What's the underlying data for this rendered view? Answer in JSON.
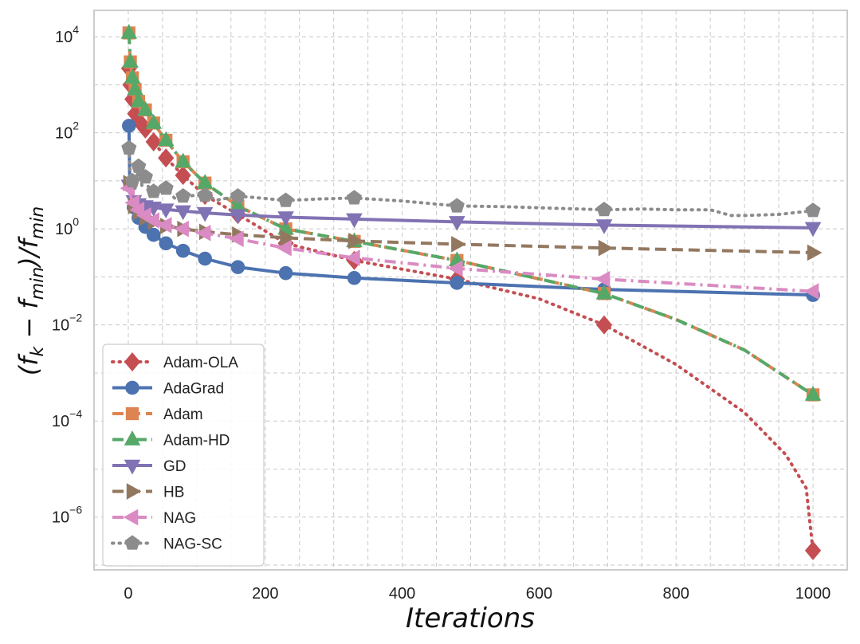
{
  "chart_data": {
    "type": "line",
    "title": "",
    "xlabel": "Iterations",
    "ylabel": {
      "open": "(",
      "fk": "f",
      "k": "k",
      "minus": " − ",
      "fmin1": "f",
      "min1": "min",
      "close": ")/",
      "fmin2": "f",
      "min2": "min"
    },
    "xlim": [
      -50,
      1050
    ],
    "ylim_log10": [
      -7.1,
      4.55
    ],
    "yscale": "log",
    "grid": true,
    "legend_position": "lower-left",
    "x_ticks": [
      0,
      200,
      400,
      600,
      800,
      1000
    ],
    "x_tick_labels": [
      "0",
      "200",
      "400",
      "600",
      "800",
      "1000"
    ],
    "y_ticks_log10": [
      4,
      2,
      0,
      -2,
      -4,
      -6
    ],
    "y_tick_labels": [
      {
        "base": "10",
        "exp": "4"
      },
      {
        "base": "10",
        "exp": "2"
      },
      {
        "base": "10",
        "exp": "0"
      },
      {
        "base": "10",
        "exp": "−2"
      },
      {
        "base": "10",
        "exp": "−4"
      },
      {
        "base": "10",
        "exp": "−6"
      }
    ],
    "series": [
      {
        "name": "Adam-OLA",
        "color": "#c44e52",
        "dash": "dot",
        "marker": "diamond",
        "line": [
          [
            1,
            2200
          ],
          [
            3,
            1000
          ],
          [
            6,
            500
          ],
          [
            10,
            250
          ],
          [
            15,
            180
          ],
          [
            25,
            120
          ],
          [
            37,
            65
          ],
          [
            55,
            30
          ],
          [
            80,
            13
          ],
          [
            112,
            5
          ],
          [
            160,
            2
          ],
          [
            230,
            0.5
          ],
          [
            330,
            0.22
          ],
          [
            480,
            0.09
          ],
          [
            600,
            0.035
          ],
          [
            695,
            0.01
          ],
          [
            800,
            0.0015
          ],
          [
            900,
            0.00015
          ],
          [
            960,
            2e-05
          ],
          [
            990,
            4e-06
          ],
          [
            1000,
            2e-07
          ]
        ],
        "markers": [
          [
            1,
            2200
          ],
          [
            3,
            1000
          ],
          [
            6,
            500
          ],
          [
            10,
            250
          ],
          [
            15,
            180
          ],
          [
            25,
            120
          ],
          [
            37,
            65
          ],
          [
            55,
            30
          ],
          [
            80,
            13
          ],
          [
            112,
            5
          ],
          [
            160,
            2
          ],
          [
            230,
            0.5
          ],
          [
            330,
            0.22
          ],
          [
            480,
            0.09
          ],
          [
            695,
            0.01
          ],
          [
            1000,
            2e-07
          ]
        ]
      },
      {
        "name": "AdaGrad",
        "color": "#4c72b0",
        "dash": "solid",
        "marker": "circle",
        "line": [
          [
            1,
            140
          ],
          [
            2,
            12
          ],
          [
            4,
            5
          ],
          [
            8,
            2.8
          ],
          [
            15,
            1.7
          ],
          [
            25,
            1.1
          ],
          [
            37,
            0.75
          ],
          [
            55,
            0.5
          ],
          [
            80,
            0.35
          ],
          [
            112,
            0.24
          ],
          [
            160,
            0.16
          ],
          [
            230,
            0.12
          ],
          [
            330,
            0.095
          ],
          [
            480,
            0.075
          ],
          [
            695,
            0.055
          ],
          [
            1000,
            0.042
          ]
        ],
        "markers": [
          [
            1,
            140
          ],
          [
            8,
            2.8
          ],
          [
            15,
            1.7
          ],
          [
            25,
            1.1
          ],
          [
            37,
            0.75
          ],
          [
            55,
            0.5
          ],
          [
            80,
            0.35
          ],
          [
            112,
            0.24
          ],
          [
            160,
            0.16
          ],
          [
            230,
            0.12
          ],
          [
            330,
            0.095
          ],
          [
            480,
            0.075
          ],
          [
            695,
            0.055
          ],
          [
            1000,
            0.042
          ]
        ]
      },
      {
        "name": "Adam",
        "color": "#dd8452",
        "dash": "dash",
        "marker": "square",
        "line": [
          [
            1,
            12000
          ],
          [
            3,
            3000
          ],
          [
            6,
            1400
          ],
          [
            10,
            800
          ],
          [
            15,
            450
          ],
          [
            25,
            300
          ],
          [
            37,
            160
          ],
          [
            55,
            70
          ],
          [
            80,
            25
          ],
          [
            112,
            9
          ],
          [
            160,
            3
          ],
          [
            230,
            1
          ],
          [
            330,
            0.55
          ],
          [
            480,
            0.22
          ],
          [
            695,
            0.045
          ],
          [
            800,
            0.013
          ],
          [
            900,
            0.003
          ],
          [
            1000,
            0.00035
          ]
        ],
        "markers": [
          [
            1,
            12000
          ],
          [
            3,
            3000
          ],
          [
            6,
            1400
          ],
          [
            10,
            800
          ],
          [
            15,
            450
          ],
          [
            25,
            300
          ],
          [
            37,
            160
          ],
          [
            55,
            70
          ],
          [
            80,
            25
          ],
          [
            112,
            9
          ],
          [
            160,
            3
          ],
          [
            230,
            1
          ],
          [
            330,
            0.55
          ],
          [
            480,
            0.22
          ],
          [
            695,
            0.045
          ],
          [
            1000,
            0.00035
          ]
        ]
      },
      {
        "name": "Adam-HD",
        "color": "#55a868",
        "dash": "dashdot",
        "marker": "triangle-up",
        "line": [
          [
            1,
            12000
          ],
          [
            3,
            3000
          ],
          [
            6,
            1400
          ],
          [
            10,
            800
          ],
          [
            15,
            450
          ],
          [
            25,
            300
          ],
          [
            37,
            160
          ],
          [
            55,
            70
          ],
          [
            80,
            25
          ],
          [
            112,
            9
          ],
          [
            160,
            3
          ],
          [
            230,
            1
          ],
          [
            330,
            0.55
          ],
          [
            480,
            0.22
          ],
          [
            695,
            0.045
          ],
          [
            800,
            0.013
          ],
          [
            900,
            0.003
          ],
          [
            1000,
            0.00035
          ]
        ],
        "markers": [
          [
            1,
            12000
          ],
          [
            3,
            3000
          ],
          [
            6,
            1400
          ],
          [
            10,
            800
          ],
          [
            15,
            450
          ],
          [
            25,
            300
          ],
          [
            37,
            160
          ],
          [
            55,
            70
          ],
          [
            80,
            25
          ],
          [
            112,
            9
          ],
          [
            160,
            3
          ],
          [
            230,
            1
          ],
          [
            330,
            0.55
          ],
          [
            480,
            0.22
          ],
          [
            695,
            0.045
          ],
          [
            1000,
            0.00035
          ]
        ]
      },
      {
        "name": "GD",
        "color": "#8172b3",
        "dash": "solid",
        "marker": "triangle-down",
        "line": [
          [
            1,
            8
          ],
          [
            4,
            4.5
          ],
          [
            8,
            3.8
          ],
          [
            15,
            3.3
          ],
          [
            25,
            3
          ],
          [
            37,
            2.8
          ],
          [
            55,
            2.55
          ],
          [
            80,
            2.35
          ],
          [
            112,
            2.15
          ],
          [
            160,
            1.95
          ],
          [
            230,
            1.75
          ],
          [
            330,
            1.6
          ],
          [
            480,
            1.4
          ],
          [
            695,
            1.2
          ],
          [
            1000,
            1.05
          ]
        ],
        "markers": [
          [
            1,
            8
          ],
          [
            8,
            3.8
          ],
          [
            15,
            3.3
          ],
          [
            25,
            3
          ],
          [
            37,
            2.8
          ],
          [
            55,
            2.55
          ],
          [
            80,
            2.35
          ],
          [
            112,
            2.15
          ],
          [
            160,
            1.95
          ],
          [
            230,
            1.75
          ],
          [
            330,
            1.6
          ],
          [
            480,
            1.4
          ],
          [
            695,
            1.2
          ],
          [
            1000,
            1.05
          ]
        ]
      },
      {
        "name": "HB",
        "color": "#937860",
        "dash": "dash",
        "marker": "triangle-right",
        "line": [
          [
            1,
            9
          ],
          [
            4,
            4.5
          ],
          [
            8,
            3
          ],
          [
            15,
            2.2
          ],
          [
            25,
            1.7
          ],
          [
            37,
            1.4
          ],
          [
            55,
            1.15
          ],
          [
            80,
            1
          ],
          [
            112,
            0.87
          ],
          [
            160,
            0.76
          ],
          [
            230,
            0.65
          ],
          [
            330,
            0.56
          ],
          [
            480,
            0.48
          ],
          [
            695,
            0.4
          ],
          [
            1000,
            0.32
          ]
        ],
        "markers": [
          [
            1,
            9
          ],
          [
            8,
            3
          ],
          [
            15,
            2.2
          ],
          [
            25,
            1.7
          ],
          [
            37,
            1.4
          ],
          [
            55,
            1.15
          ],
          [
            80,
            1
          ],
          [
            112,
            0.87
          ],
          [
            160,
            0.76
          ],
          [
            230,
            0.65
          ],
          [
            330,
            0.56
          ],
          [
            480,
            0.48
          ],
          [
            695,
            0.4
          ],
          [
            1000,
            0.32
          ]
        ]
      },
      {
        "name": "NAG",
        "color": "#da8bc3",
        "dash": "dashdot",
        "marker": "triangle-left",
        "line": [
          [
            1,
            7
          ],
          [
            4,
            4.5
          ],
          [
            8,
            3.5
          ],
          [
            15,
            2.5
          ],
          [
            25,
            1.9
          ],
          [
            37,
            1.5
          ],
          [
            55,
            1.2
          ],
          [
            80,
            1
          ],
          [
            112,
            0.82
          ],
          [
            160,
            0.62
          ],
          [
            230,
            0.4
          ],
          [
            330,
            0.25
          ],
          [
            480,
            0.15
          ],
          [
            695,
            0.09
          ],
          [
            1000,
            0.05
          ]
        ],
        "markers": [
          [
            1,
            7
          ],
          [
            8,
            3.5
          ],
          [
            15,
            2.5
          ],
          [
            25,
            1.9
          ],
          [
            37,
            1.5
          ],
          [
            55,
            1.2
          ],
          [
            80,
            1
          ],
          [
            112,
            0.82
          ],
          [
            160,
            0.62
          ],
          [
            230,
            0.4
          ],
          [
            330,
            0.25
          ],
          [
            480,
            0.15
          ],
          [
            695,
            0.09
          ],
          [
            1000,
            0.05
          ]
        ]
      },
      {
        "name": "NAG-SC",
        "color": "#8c8c8c",
        "dash": "dot",
        "marker": "pentagon",
        "line": [
          [
            1,
            48
          ],
          [
            3,
            12
          ],
          [
            6,
            10
          ],
          [
            10,
            7
          ],
          [
            15,
            20
          ],
          [
            20,
            8
          ],
          [
            25,
            12
          ],
          [
            30,
            7
          ],
          [
            40,
            5.5
          ],
          [
            55,
            7
          ],
          [
            70,
            4
          ],
          [
            80,
            4.8
          ],
          [
            100,
            5
          ],
          [
            112,
            5
          ],
          [
            130,
            4
          ],
          [
            160,
            4.8
          ],
          [
            200,
            4.3
          ],
          [
            230,
            3.9
          ],
          [
            280,
            4.2
          ],
          [
            330,
            4.4
          ],
          [
            400,
            3.8
          ],
          [
            480,
            3
          ],
          [
            550,
            2.9
          ],
          [
            620,
            2.7
          ],
          [
            695,
            2.5
          ],
          [
            750,
            2.6
          ],
          [
            800,
            2.5
          ],
          [
            850,
            2.5
          ],
          [
            880,
            1.9
          ],
          [
            900,
            1.9
          ],
          [
            950,
            2
          ],
          [
            1000,
            2.4
          ]
        ],
        "markers": [
          [
            1,
            48
          ],
          [
            6,
            10
          ],
          [
            15,
            20
          ],
          [
            25,
            12
          ],
          [
            37,
            6
          ],
          [
            55,
            7
          ],
          [
            80,
            4.8
          ],
          [
            112,
            5
          ],
          [
            160,
            4.8
          ],
          [
            230,
            3.9
          ],
          [
            330,
            4.4
          ],
          [
            480,
            3
          ],
          [
            695,
            2.5
          ],
          [
            1000,
            2.4
          ]
        ]
      }
    ]
  }
}
